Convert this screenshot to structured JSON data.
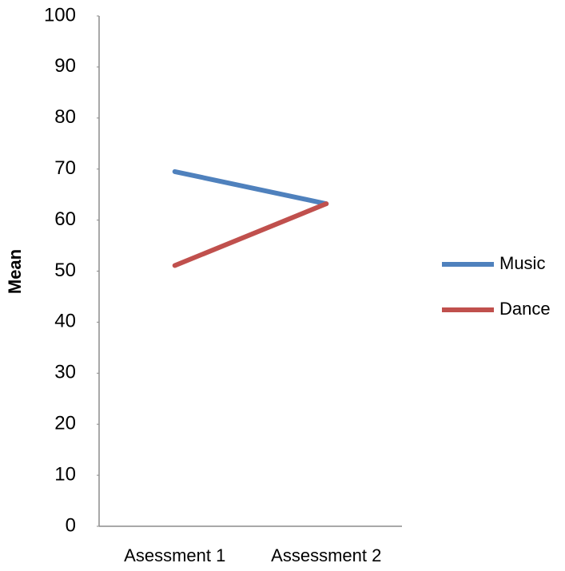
{
  "chart_data": {
    "type": "line",
    "y_label": "Mean",
    "categories": [
      "Asessment 1",
      "Assessment 2"
    ],
    "series": [
      {
        "name": "Music",
        "color": "#4f81bd",
        "values": [
          69.5,
          63.2
        ]
      },
      {
        "name": "Dance",
        "color": "#c0504d",
        "values": [
          51.1,
          63.2
        ]
      }
    ],
    "ylim": [
      0,
      100
    ],
    "yticks": [
      0,
      10,
      20,
      30,
      40,
      50,
      60,
      70,
      80,
      90,
      100
    ],
    "grid": false,
    "legend": "right"
  }
}
